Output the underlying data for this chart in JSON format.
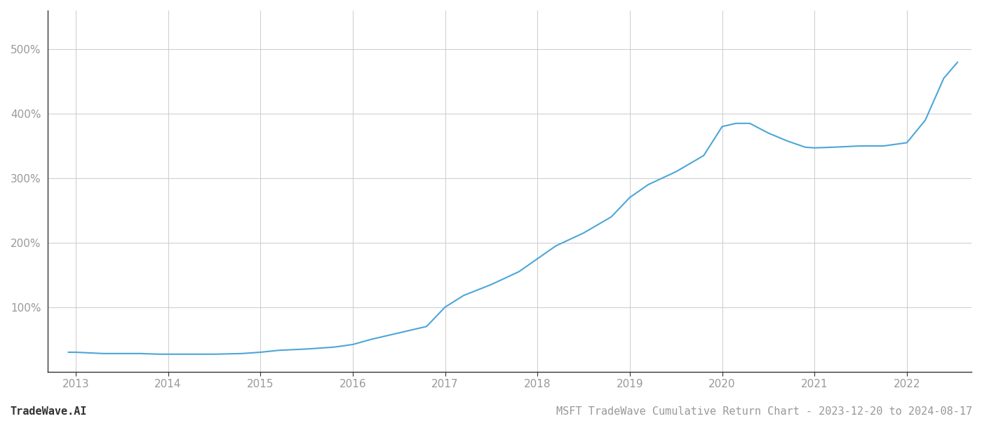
{
  "title": "MSFT TradeWave Cumulative Return Chart - 2023-12-20 to 2024-08-17",
  "watermark": "TradeWave.AI",
  "line_color": "#4da6d8",
  "background_color": "#ffffff",
  "grid_color": "#cccccc",
  "x_years": [
    2013,
    2014,
    2015,
    2016,
    2017,
    2018,
    2019,
    2020,
    2021,
    2022
  ],
  "data_x": [
    2012.92,
    2013.0,
    2013.15,
    2013.3,
    2013.5,
    2013.7,
    2013.9,
    2014.0,
    2014.2,
    2014.5,
    2014.8,
    2015.0,
    2015.2,
    2015.5,
    2015.8,
    2016.0,
    2016.2,
    2016.5,
    2016.8,
    2017.0,
    2017.2,
    2017.5,
    2017.8,
    2018.0,
    2018.2,
    2018.5,
    2018.8,
    2019.0,
    2019.2,
    2019.5,
    2019.8,
    2020.0,
    2020.15,
    2020.3,
    2020.5,
    2020.7,
    2020.9,
    2021.0,
    2021.2,
    2021.5,
    2021.75,
    2022.0,
    2022.2,
    2022.4,
    2022.55
  ],
  "data_y": [
    30,
    30,
    29,
    28,
    28,
    28,
    27,
    27,
    27,
    27,
    28,
    30,
    33,
    35,
    38,
    42,
    50,
    60,
    70,
    100,
    118,
    135,
    155,
    175,
    195,
    215,
    240,
    270,
    290,
    310,
    335,
    380,
    385,
    385,
    370,
    358,
    348,
    347,
    348,
    350,
    350,
    355,
    390,
    455,
    480
  ],
  "ylim": [
    0,
    560
  ],
  "yticks": [
    100,
    200,
    300,
    400,
    500
  ],
  "ytick_labels": [
    "100%",
    "200%",
    "300%",
    "400%",
    "500%"
  ],
  "xlim": [
    2012.7,
    2022.7
  ],
  "title_fontsize": 11,
  "watermark_fontsize": 11,
  "tick_fontsize": 11,
  "axis_label_color": "#999999",
  "spine_color": "#333333"
}
